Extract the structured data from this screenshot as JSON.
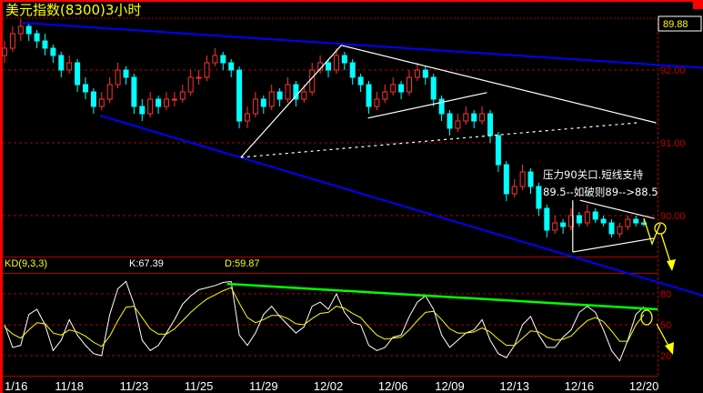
{
  "header": {
    "title": "美元指数(8300)3小时"
  },
  "colors": {
    "up": "#ff3232",
    "down": "#00ffff",
    "grid": "#b00000",
    "k_line": "#ffffff",
    "d_line": "#ffff00",
    "trend_blue": "#0000ff",
    "trend_green": "#00ff00",
    "annotation": "#ffffff",
    "arrow": "#ffff00"
  },
  "annotation": {
    "line1": "压力90关口.短线支持",
    "line2": "89.5--如破则89-->88.5"
  },
  "chart_data": [
    {
      "type": "candlestick",
      "title": "美元指数(8300)3小时",
      "last_price": "89.88",
      "y_ticks": [
        "92.00",
        "91.00",
        "90.00"
      ],
      "y_tick_values": [
        92,
        91,
        90
      ],
      "ylim": [
        89.51,
        92.71
      ],
      "grid": true,
      "x_labels": [
        {
          "label": "1/16",
          "index": 0
        },
        {
          "label": "11/18",
          "index": 8
        },
        {
          "label": "11/23",
          "index": 16
        },
        {
          "label": "11/25",
          "index": 24
        },
        {
          "label": "11/29",
          "index": 32
        },
        {
          "label": "12/02",
          "index": 40
        },
        {
          "label": "12/06",
          "index": 48
        },
        {
          "label": "12/09",
          "index": 55
        },
        {
          "label": "12/13",
          "index": 63
        },
        {
          "label": "12/16",
          "index": 71
        },
        {
          "label": "12/20",
          "index": 79
        }
      ],
      "ohlc": [
        [
          92.2,
          92.4,
          92.1,
          92.3
        ],
        [
          92.3,
          92.6,
          92.25,
          92.5
        ],
        [
          92.5,
          92.7,
          92.4,
          92.6
        ],
        [
          92.6,
          92.65,
          92.4,
          92.5
        ],
        [
          92.5,
          92.55,
          92.3,
          92.4
        ],
        [
          92.4,
          92.5,
          92.2,
          92.3
        ],
        [
          92.3,
          92.35,
          92.1,
          92.2
        ],
        [
          92.2,
          92.25,
          91.9,
          92.0
        ],
        [
          92.0,
          92.2,
          91.95,
          92.1
        ],
        [
          92.1,
          92.15,
          91.7,
          91.8
        ],
        [
          91.8,
          91.9,
          91.6,
          91.7
        ],
        [
          91.7,
          91.75,
          91.4,
          91.5
        ],
        [
          91.5,
          91.7,
          91.45,
          91.6
        ],
        [
          91.6,
          91.9,
          91.55,
          91.8
        ],
        [
          91.8,
          92.1,
          91.75,
          92.0
        ],
        [
          92.0,
          92.05,
          91.8,
          91.9
        ],
        [
          91.9,
          91.95,
          91.4,
          91.5
        ],
        [
          91.5,
          91.6,
          91.3,
          91.4
        ],
        [
          91.4,
          91.7,
          91.35,
          91.6
        ],
        [
          91.6,
          91.65,
          91.4,
          91.5
        ],
        [
          91.5,
          91.7,
          91.45,
          91.6
        ],
        [
          91.6,
          91.7,
          91.5,
          91.6
        ],
        [
          91.6,
          91.8,
          91.55,
          91.7
        ],
        [
          91.7,
          92.0,
          91.65,
          91.9
        ],
        [
          91.9,
          92.0,
          91.8,
          91.9
        ],
        [
          91.9,
          92.2,
          91.85,
          92.1
        ],
        [
          92.1,
          92.3,
          92.05,
          92.2
        ],
        [
          92.2,
          92.25,
          92.0,
          92.1
        ],
        [
          92.1,
          92.15,
          91.9,
          92.0
        ],
        [
          92.0,
          92.05,
          91.2,
          91.3
        ],
        [
          91.3,
          91.5,
          91.2,
          91.4
        ],
        [
          91.4,
          91.7,
          91.35,
          91.6
        ],
        [
          91.6,
          91.65,
          91.4,
          91.5
        ],
        [
          91.5,
          91.8,
          91.45,
          91.7
        ],
        [
          91.7,
          91.75,
          91.5,
          91.6
        ],
        [
          91.6,
          91.9,
          91.55,
          91.8
        ],
        [
          91.8,
          91.85,
          91.5,
          91.6
        ],
        [
          91.6,
          91.8,
          91.55,
          91.7
        ],
        [
          91.7,
          92.1,
          91.65,
          92.0
        ],
        [
          92.0,
          92.2,
          91.95,
          92.1
        ],
        [
          92.1,
          92.15,
          91.9,
          92.0
        ],
        [
          92.0,
          92.3,
          91.95,
          92.2
        ],
        [
          92.2,
          92.25,
          92.0,
          92.1
        ],
        [
          92.1,
          92.15,
          91.8,
          91.9
        ],
        [
          91.9,
          91.95,
          91.7,
          91.8
        ],
        [
          91.8,
          91.85,
          91.4,
          91.5
        ],
        [
          91.5,
          91.7,
          91.45,
          91.6
        ],
        [
          91.6,
          91.8,
          91.55,
          91.7
        ],
        [
          91.7,
          91.9,
          91.65,
          91.8
        ],
        [
          91.8,
          91.85,
          91.6,
          91.7
        ],
        [
          91.7,
          92.0,
          91.65,
          91.9
        ],
        [
          91.9,
          92.1,
          91.85,
          92.0
        ],
        [
          92.0,
          92.05,
          91.8,
          91.9
        ],
        [
          91.9,
          91.95,
          91.5,
          91.6
        ],
        [
          91.6,
          91.65,
          91.3,
          91.4
        ],
        [
          91.4,
          91.45,
          91.1,
          91.2
        ],
        [
          91.2,
          91.4,
          91.15,
          91.3
        ],
        [
          91.3,
          91.5,
          91.25,
          91.4
        ],
        [
          91.4,
          91.45,
          91.2,
          91.3
        ],
        [
          91.3,
          91.5,
          91.25,
          91.4
        ],
        [
          91.4,
          91.45,
          91.0,
          91.1
        ],
        [
          91.1,
          91.15,
          90.6,
          90.7
        ],
        [
          90.7,
          90.75,
          90.2,
          90.3
        ],
        [
          90.3,
          90.5,
          90.25,
          90.4
        ],
        [
          90.4,
          90.7,
          90.35,
          90.6
        ],
        [
          90.6,
          90.65,
          90.3,
          90.4
        ],
        [
          90.4,
          90.45,
          90.0,
          90.1
        ],
        [
          90.1,
          90.15,
          89.7,
          89.8
        ],
        [
          89.8,
          90.0,
          89.75,
          89.9
        ],
        [
          89.9,
          89.95,
          89.75,
          89.85
        ],
        [
          89.85,
          90.1,
          89.8,
          90.0
        ],
        [
          90.0,
          90.05,
          89.85,
          89.9
        ],
        [
          89.9,
          90.15,
          89.85,
          90.05
        ],
        [
          90.05,
          90.1,
          89.9,
          89.95
        ],
        [
          89.95,
          90.0,
          89.85,
          89.9
        ],
        [
          89.9,
          89.95,
          89.7,
          89.75
        ],
        [
          89.75,
          89.9,
          89.7,
          89.85
        ],
        [
          89.85,
          90.0,
          89.8,
          89.95
        ],
        [
          89.95,
          90.0,
          89.85,
          89.9
        ],
        [
          89.9,
          89.95,
          89.85,
          89.88
        ]
      ],
      "trendlines": [
        {
          "color": "blue",
          "from": [
            2.2,
            92.65
          ],
          "to": [
            86.3,
            92.03
          ]
        },
        {
          "color": "blue",
          "from": [
            11.8,
            91.375
          ],
          "to": [
            86.3,
            88.9
          ]
        },
        {
          "color": "white",
          "from": [
            29.2,
            90.8
          ],
          "to": [
            41.6,
            92.34
          ]
        },
        {
          "color": "white",
          "from": [
            41.6,
            92.34
          ],
          "to": [
            80.5,
            91.275
          ]
        },
        {
          "color": "white",
          "from": [
            44.9,
            91.34
          ],
          "to": [
            59.6,
            91.69
          ]
        },
        {
          "color": "white",
          "style": "dashed",
          "from": [
            29.2,
            90.8
          ],
          "to": [
            78.1,
            91.275
          ]
        },
        {
          "color": "white",
          "from": [
            70.2,
            89.5
          ],
          "to": [
            80.3,
            89.69
          ]
        },
        {
          "color": "white",
          "from": [
            71.1,
            90.21
          ],
          "to": [
            80.3,
            89.96
          ]
        },
        {
          "color": "white",
          "from": [
            70.2,
            89.5
          ],
          "to": [
            70.2,
            90.21
          ]
        }
      ]
    },
    {
      "type": "line",
      "title": "KD(9,3,3)",
      "k_label": "K:67.39",
      "d_label": "D:59.87",
      "y_ticks": [
        "80",
        "50",
        "20"
      ],
      "y_tick_values": [
        80,
        50,
        20
      ],
      "ylim": [
        0,
        100
      ],
      "grid": true,
      "series": [
        {
          "name": "K",
          "values": [
            50,
            28,
            30,
            60,
            65,
            50,
            25,
            35,
            55,
            40,
            30,
            22,
            20,
            60,
            85,
            92,
            70,
            35,
            25,
            30,
            42,
            55,
            70,
            78,
            84,
            86,
            88,
            91,
            92,
            40,
            30,
            42,
            60,
            68,
            58,
            50,
            42,
            48,
            68,
            72,
            65,
            80,
            62,
            52,
            50,
            30,
            25,
            28,
            38,
            40,
            58,
            72,
            78,
            65,
            40,
            28,
            35,
            42,
            45,
            55,
            35,
            22,
            18,
            30,
            50,
            58,
            40,
            28,
            28,
            38,
            45,
            62,
            68,
            62,
            45,
            25,
            15,
            35,
            60,
            67.39
          ]
        },
        {
          "name": "D",
          "values": [
            48,
            41,
            37,
            45,
            52,
            51,
            42,
            40,
            45,
            43,
            39,
            33,
            29,
            39,
            54,
            67,
            68,
            57,
            46,
            41,
            41,
            46,
            54,
            62,
            69,
            75,
            79,
            83,
            86,
            71,
            57,
            52,
            55,
            59,
            59,
            56,
            51,
            50,
            56,
            61,
            62,
            68,
            66,
            61,
            57,
            48,
            40,
            36,
            37,
            38,
            45,
            54,
            62,
            63,
            55,
            46,
            42,
            42,
            43,
            47,
            43,
            36,
            30,
            30,
            37,
            44,
            43,
            38,
            35,
            36,
            39,
            47,
            54,
            57,
            53,
            44,
            34,
            34,
            50,
            59.87
          ]
        }
      ],
      "trendline": {
        "color": "green",
        "from": [
          27.5,
          89.7
        ],
        "to": [
          80.7,
          65
        ]
      }
    }
  ]
}
